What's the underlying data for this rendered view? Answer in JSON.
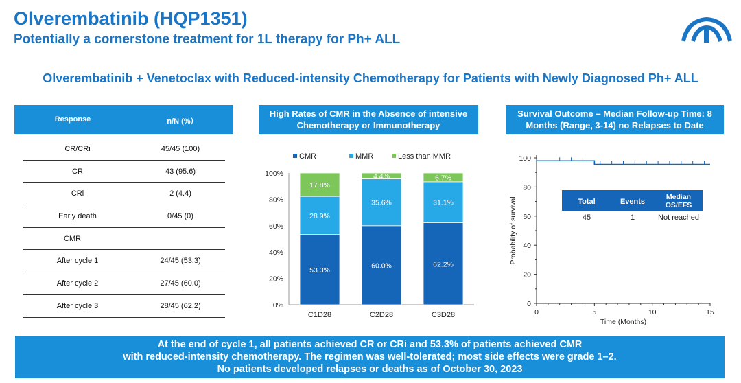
{
  "header": {
    "title": "Olverembatinib (HQP1351)",
    "subtitle": "Potentially a cornerstone treatment for 1L therapy for Ph+ ALL",
    "headline": "Olverembatinib + Venetoclax with Reduced-intensity Chemotherapy for Patients with Newly Diagnosed Ph+ ALL"
  },
  "colors": {
    "accent": "#1a8fd9",
    "cmr": "#1565b8",
    "mmr": "#27a9e8",
    "less": "#7cc65a"
  },
  "response_table": {
    "col1": "Response",
    "col2": "n/N (%）",
    "rows": [
      {
        "label": "CR/CRi",
        "value": "45/45 (100)"
      },
      {
        "label": "CR",
        "value": "43 (95.6)"
      },
      {
        "label": "CRi",
        "value": "2 (4.4)"
      },
      {
        "label": "Early death",
        "value": "0/45 (0)"
      },
      {
        "label": "CMR",
        "value": ""
      },
      {
        "label": "After cycle 1",
        "value": "24/45 (53.3)"
      },
      {
        "label": "After cycle 2",
        "value": "27/45 (60.0)"
      },
      {
        "label": "After cycle 3",
        "value": "28/45 (62.2)"
      }
    ]
  },
  "panels": {
    "middle_title": "High Rates of CMR in the Absence of intensive Chemotherapy or Immunotherapy",
    "right_title": "Survival Outcome – Median Follow-up Time: 8 Months (Range, 3-14) no Relapses to Date"
  },
  "chart_data": [
    {
      "type": "bar",
      "stacked": true,
      "categories": [
        "C1D28",
        "C2D28",
        "C3D28"
      ],
      "series": [
        {
          "name": "CMR",
          "values": [
            53.3,
            60.0,
            62.2
          ],
          "labels": [
            "53.3%",
            "60.0%",
            "62.2%"
          ]
        },
        {
          "name": "MMR",
          "values": [
            28.9,
            35.6,
            31.1
          ],
          "labels": [
            "28.9%",
            "35.6%",
            "31.1%"
          ]
        },
        {
          "name": "Less than MMR",
          "values": [
            17.8,
            4.4,
            6.7
          ],
          "labels": [
            "17.8%",
            "4.4%",
            "6.7%"
          ]
        }
      ],
      "ylim": [
        0,
        100
      ],
      "yticks": [
        "0%",
        "20%",
        "40%",
        "60%",
        "80%",
        "100%"
      ]
    },
    {
      "type": "line",
      "x": [
        0,
        5,
        5,
        15
      ],
      "y": [
        98,
        98,
        95.5,
        95.5
      ],
      "censor_x": [
        2,
        3,
        4,
        5.5,
        6.5,
        7.5,
        8.5,
        9.5,
        10.5,
        11.5,
        12.5,
        13.5,
        14.5
      ],
      "xlim": [
        0,
        15
      ],
      "ylim": [
        0,
        100
      ],
      "xticks": [
        "0",
        "5",
        "10",
        "15"
      ],
      "yticks": [
        "0",
        "20",
        "40",
        "60",
        "80",
        "100"
      ],
      "xlabel": "Time (Months)",
      "ylabel": "Probability of survival",
      "inset": {
        "headers": [
          "Total",
          "Events",
          "Median",
          "OS/EFS"
        ],
        "values": [
          "45",
          "1",
          "Not reached"
        ]
      }
    }
  ],
  "banner": {
    "line1": "At the end of cycle 1, all patients achieved CR or CRi and 53.3% of patients achieved CMR",
    "line2": "with reduced-intensity chemotherapy. The regimen was well-tolerated; most side effects were grade 1–2.",
    "line3": "No patients developed relapses or deaths as of October 30, 2023"
  }
}
